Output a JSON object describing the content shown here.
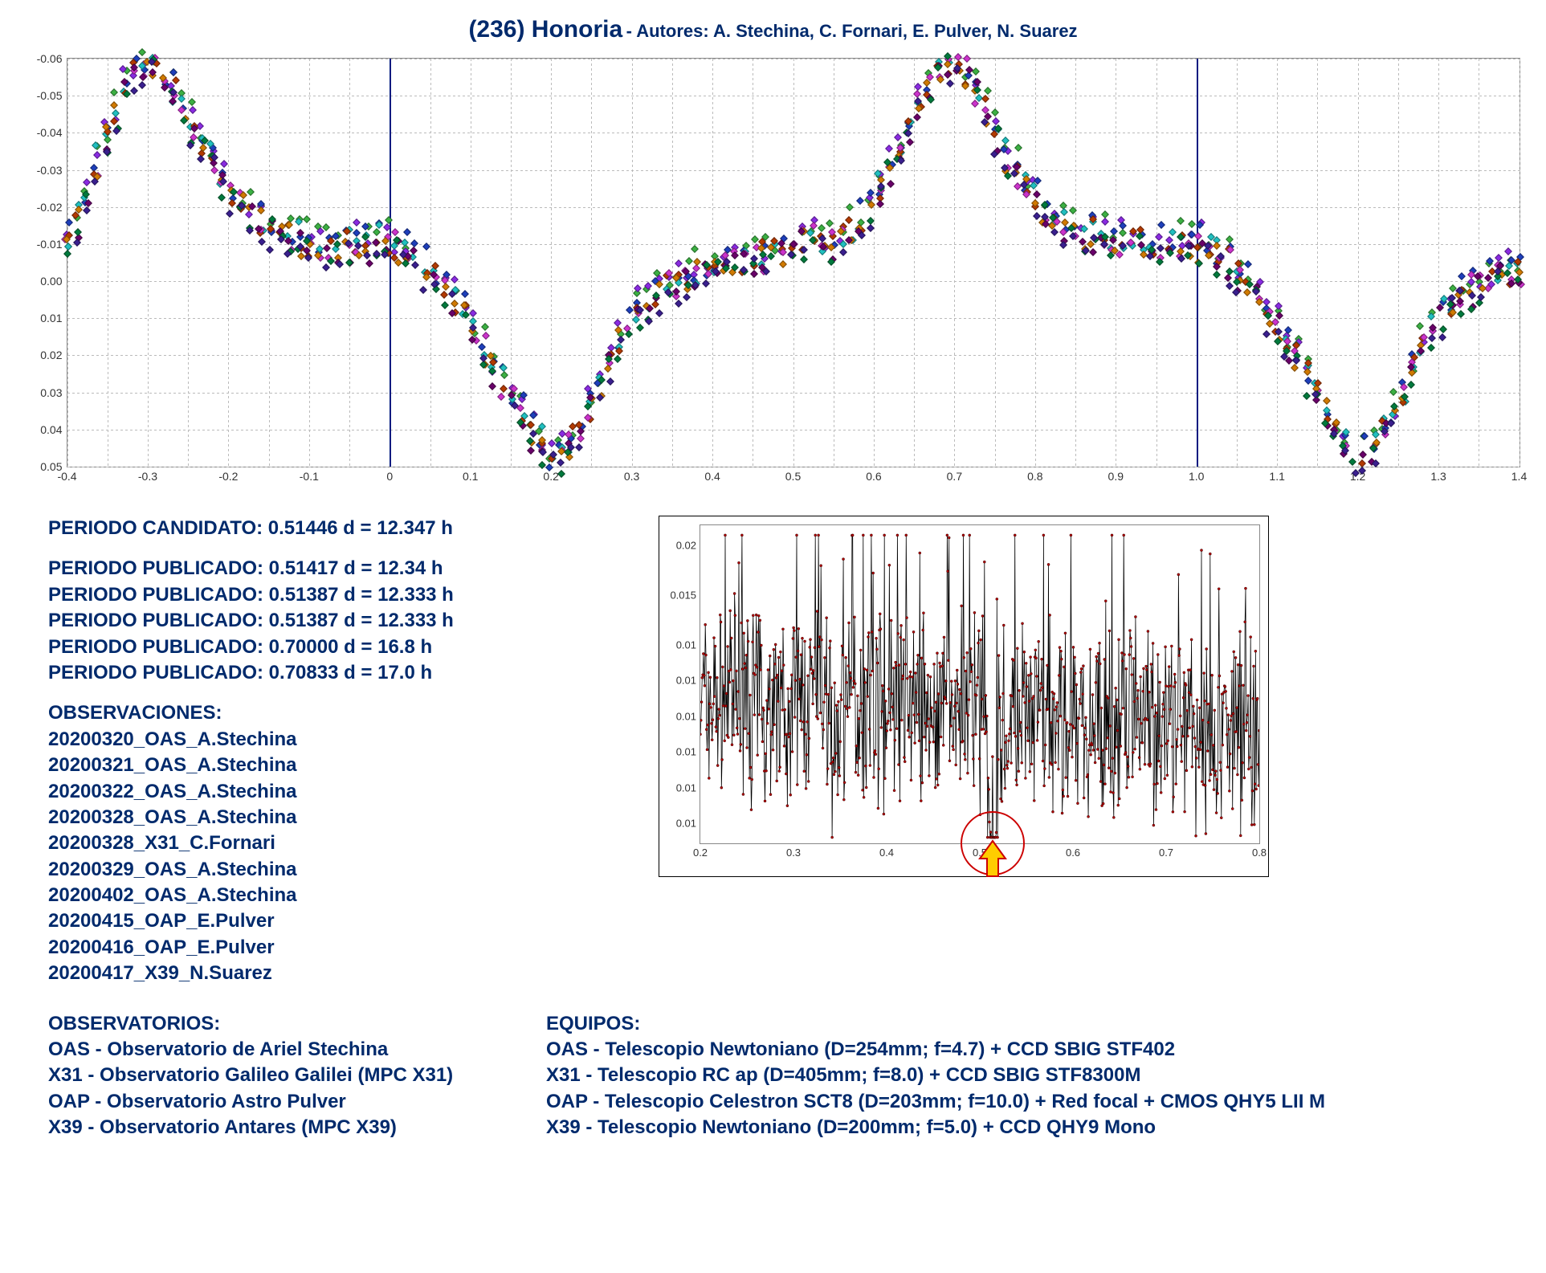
{
  "title_main": "(236) Honoria",
  "title_sub": " - Autores: A. Stechina, C. Fornari, E. Pulver, N. Suarez",
  "phase_chart": {
    "type": "scatter",
    "xlim": [
      -0.4,
      1.4
    ],
    "ylim_top": -0.06,
    "ylim_bottom": 0.05,
    "x_ticks": [
      -0.4,
      -0.3,
      -0.2,
      -0.1,
      0,
      0.1,
      0.2,
      0.3,
      0.4,
      0.5,
      0.6,
      0.7,
      0.8,
      0.9,
      1,
      1.1,
      1.2,
      1.3,
      1.4
    ],
    "x_minor": [
      -0.35,
      -0.25,
      -0.15,
      -0.05,
      0.05,
      0.15,
      0.25,
      0.35,
      0.45,
      0.55,
      0.65,
      0.75,
      0.85,
      0.95,
      1.05,
      1.15,
      1.25,
      1.35
    ],
    "y_ticks": [
      -0.06,
      -0.05,
      -0.04,
      -0.03,
      -0.02,
      -0.01,
      0.0,
      0.01,
      0.02,
      0.03,
      0.04,
      0.05
    ],
    "period_lines_x": [
      0.0,
      1.0
    ],
    "marker_size": 7,
    "background_color": "#ffffff",
    "grid_color": "#bbbbbb",
    "base_curve": [
      [
        -0.4,
        -0.01
      ],
      [
        -0.38,
        -0.02
      ],
      [
        -0.36,
        -0.035
      ],
      [
        -0.34,
        -0.045
      ],
      [
        -0.32,
        -0.055
      ],
      [
        -0.3,
        -0.06
      ],
      [
        -0.28,
        -0.055
      ],
      [
        -0.26,
        -0.048
      ],
      [
        -0.24,
        -0.04
      ],
      [
        -0.22,
        -0.032
      ],
      [
        -0.2,
        -0.025
      ],
      [
        -0.18,
        -0.02
      ],
      [
        -0.16,
        -0.016
      ],
      [
        -0.14,
        -0.014
      ],
      [
        -0.12,
        -0.012
      ],
      [
        -0.1,
        -0.01
      ],
      [
        -0.08,
        -0.01
      ],
      [
        -0.06,
        -0.01
      ],
      [
        -0.04,
        -0.01
      ],
      [
        -0.02,
        -0.01
      ],
      [
        0.0,
        -0.01
      ],
      [
        0.02,
        -0.008
      ],
      [
        0.04,
        -0.005
      ],
      [
        0.06,
        0.0
      ],
      [
        0.08,
        0.005
      ],
      [
        0.1,
        0.012
      ],
      [
        0.12,
        0.02
      ],
      [
        0.14,
        0.028
      ],
      [
        0.16,
        0.035
      ],
      [
        0.18,
        0.042
      ],
      [
        0.2,
        0.048
      ],
      [
        0.22,
        0.045
      ],
      [
        0.24,
        0.038
      ],
      [
        0.26,
        0.028
      ],
      [
        0.28,
        0.018
      ],
      [
        0.3,
        0.01
      ],
      [
        0.32,
        0.005
      ],
      [
        0.34,
        0.002
      ],
      [
        0.36,
        0.0
      ],
      [
        0.38,
        -0.002
      ],
      [
        0.4,
        -0.003
      ],
      [
        0.42,
        -0.004
      ],
      [
        0.44,
        -0.005
      ],
      [
        0.46,
        -0.006
      ],
      [
        0.48,
        -0.008
      ],
      [
        0.5,
        -0.01
      ],
      [
        0.52,
        -0.012
      ],
      [
        0.54,
        -0.01
      ],
      [
        0.56,
        -0.012
      ],
      [
        0.58,
        -0.015
      ],
      [
        0.6,
        -0.02
      ],
      [
        0.62,
        -0.03
      ],
      [
        0.64,
        -0.04
      ],
      [
        0.66,
        -0.05
      ],
      [
        0.68,
        -0.058
      ],
      [
        0.7,
        -0.06
      ],
      [
        0.72,
        -0.055
      ],
      [
        0.74,
        -0.045
      ],
      [
        0.76,
        -0.035
      ],
      [
        0.78,
        -0.028
      ],
      [
        0.8,
        -0.022
      ],
      [
        0.82,
        -0.018
      ],
      [
        0.84,
        -0.015
      ],
      [
        0.86,
        -0.013
      ],
      [
        0.88,
        -0.012
      ],
      [
        0.9,
        -0.011
      ],
      [
        0.92,
        -0.01
      ],
      [
        0.94,
        -0.01
      ],
      [
        0.96,
        -0.01
      ],
      [
        0.98,
        -0.01
      ],
      [
        1.0,
        -0.01
      ],
      [
        1.02,
        -0.008
      ],
      [
        1.04,
        -0.005
      ],
      [
        1.06,
        0.0
      ],
      [
        1.08,
        0.005
      ],
      [
        1.1,
        0.012
      ],
      [
        1.12,
        0.02
      ],
      [
        1.14,
        0.028
      ],
      [
        1.16,
        0.035
      ],
      [
        1.18,
        0.042
      ],
      [
        1.2,
        0.048
      ],
      [
        1.22,
        0.045
      ],
      [
        1.24,
        0.038
      ],
      [
        1.26,
        0.028
      ],
      [
        1.28,
        0.018
      ],
      [
        1.3,
        0.01
      ],
      [
        1.32,
        0.005
      ],
      [
        1.34,
        0.002
      ],
      [
        1.36,
        0.0
      ],
      [
        1.38,
        -0.002
      ],
      [
        1.4,
        -0.003
      ]
    ],
    "series_colors": [
      "#3cb043",
      "#8a2be2",
      "#1e3fbb",
      "#20c0c0",
      "#b33a00",
      "#cc33cc",
      "#d17a00",
      "#6a006a",
      "#007a3d",
      "#3a1f8f"
    ],
    "series_scatter": 0.004
  },
  "periodo_candidato": "PERIODO CANDIDATO: 0.51446 d = 12.347 h",
  "periodos_publicados": [
    "PERIODO PUBLICADO: 0.51417 d = 12.34 h",
    "PERIODO PUBLICADO: 0.51387 d = 12.333 h",
    "PERIODO PUBLICADO: 0.51387 d = 12.333 h",
    "PERIODO PUBLICADO: 0.70000 d = 16.8 h",
    "PERIODO PUBLICADO: 0.70833 d = 17.0 h"
  ],
  "observaciones_header": "OBSERVACIONES:",
  "observaciones": [
    "20200320_OAS_A.Stechina",
    "20200321_OAS_A.Stechina",
    "20200322_OAS_A.Stechina",
    "20200328_OAS_A.Stechina",
    "20200328_X31_C.Fornari",
    "20200329_OAS_A.Stechina",
    "20200402_OAS_A.Stechina",
    "20200415_OAP_E.Pulver",
    "20200416_OAP_E.Pulver",
    "20200417_X39_N.Suarez"
  ],
  "periodogram": {
    "type": "line-dense",
    "xlim": [
      0.2,
      0.8
    ],
    "ylim": [
      0.005,
      0.021
    ],
    "x_ticks": [
      0.2,
      0.3,
      0.4,
      0.5,
      0.6,
      0.7,
      0.8
    ],
    "y_ticks": [
      0.01,
      0.01,
      0.01,
      0.01,
      0.01,
      0.01,
      0.015,
      0.02
    ],
    "line_color": "#8b0000",
    "marker_color": "#aa0000",
    "highlight_x": 0.514,
    "arrow_color_fill": "#ffcc00",
    "arrow_color_stroke": "#cc0000",
    "circle_color": "#cc0000"
  },
  "observatorios_header": "OBSERVATORIOS:",
  "observatorios": [
    "OAS - Observatorio de Ariel Stechina",
    "X31 - Observatorio Galileo Galilei (MPC X31)",
    "OAP - Observatorio Astro Pulver",
    "X39 - Observatorio Antares (MPC X39)"
  ],
  "equipos_header": "EQUIPOS:",
  "equipos": [
    "OAS - Telescopio Newtoniano (D=254mm; f=4.7) + CCD SBIG STF402",
    "X31 - Telescopio RC ap (D=405mm; f=8.0) + CCD SBIG STF8300M",
    "OAP - Telescopio Celestron SCT8 (D=203mm; f=10.0) + Red focal + CMOS QHY5 LII M",
    "X39 - Telescopio Newtoniano (D=200mm; f=5.0) + CCD QHY9 Mono"
  ]
}
